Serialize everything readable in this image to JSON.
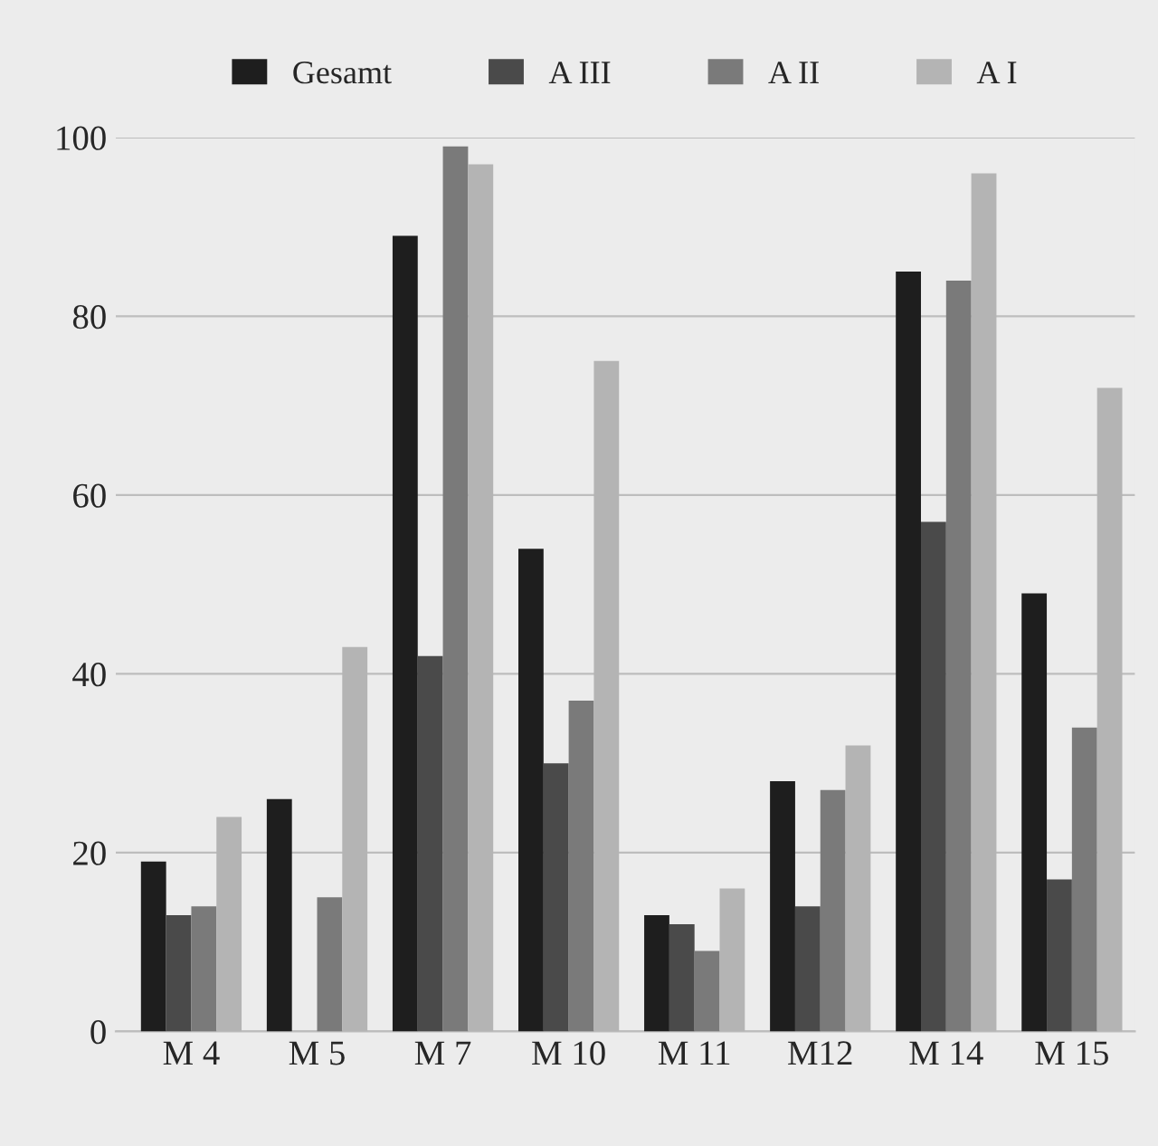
{
  "chart_data": {
    "type": "bar",
    "categories": [
      "M 4",
      "M 5",
      "M 7",
      "M 10",
      "M 11",
      "M12",
      "M 14",
      "M 15"
    ],
    "series": [
      {
        "name": "Gesamt",
        "color": "#1e1e1e",
        "values": [
          19,
          26,
          89,
          54,
          13,
          28,
          85,
          49
        ]
      },
      {
        "name": "A III",
        "color": "#4a4a4a",
        "values": [
          13,
          null,
          42,
          30,
          12,
          14,
          57,
          17
        ]
      },
      {
        "name": "A II",
        "color": "#7a7a7a",
        "values": [
          14,
          15,
          99,
          37,
          9,
          27,
          84,
          34
        ]
      },
      {
        "name": "A I",
        "color": "#b4b4b4",
        "values": [
          24,
          43,
          97,
          75,
          16,
          32,
          96,
          72
        ]
      }
    ],
    "ylim": [
      0,
      100
    ],
    "yticks": [
      0,
      20,
      40,
      60,
      80,
      100
    ],
    "grid": "y",
    "legend": "top"
  }
}
